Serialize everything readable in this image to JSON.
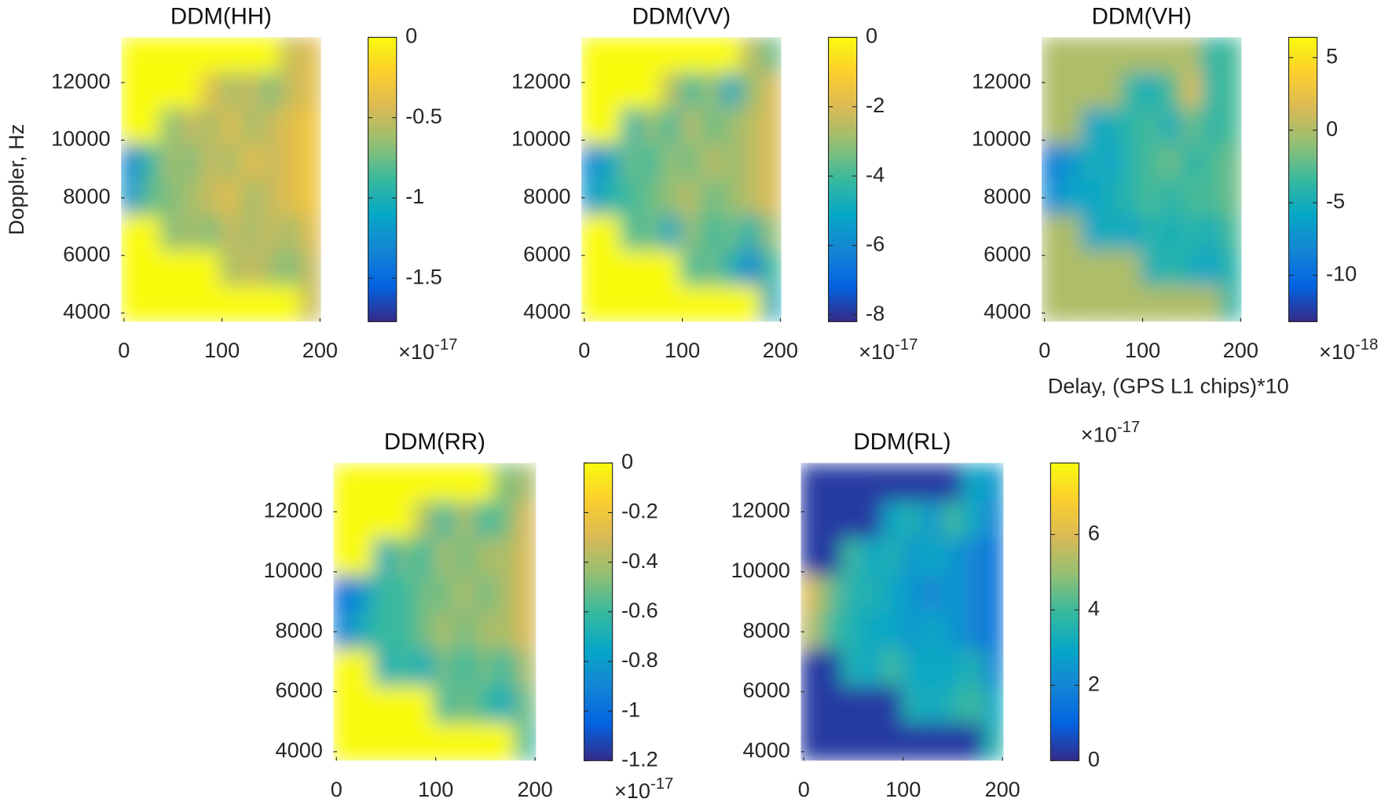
{
  "chart_data": [
    {
      "type": "heatmap",
      "title": "DDM(HH)",
      "ylabel": "Doppler, Hz",
      "colormap": "parula",
      "x": [
        7,
        27,
        48,
        68,
        89,
        109,
        129,
        150,
        170,
        191
      ],
      "y": [
        12953,
        11719,
        10485,
        9251,
        8018,
        6784,
        5550,
        4317
      ],
      "z": [
        [
          0,
          0,
          0,
          0,
          0,
          0,
          0,
          0,
          -0.5,
          -0.4
        ],
        [
          0,
          0,
          0,
          0,
          -0.4,
          -0.6,
          -0.5,
          -0.7,
          -0.5,
          -0.4
        ],
        [
          0,
          0,
          -0.7,
          -0.5,
          -0.6,
          -0.4,
          -0.6,
          -0.5,
          -0.4,
          -0.3
        ],
        [
          -1.3,
          -0.9,
          -0.6,
          -0.7,
          -0.5,
          -0.6,
          -0.4,
          -0.5,
          -0.4,
          -0.3
        ],
        [
          -1.2,
          -0.8,
          -0.7,
          -0.6,
          -0.5,
          -0.4,
          -0.6,
          -0.5,
          -0.4,
          -0.3
        ],
        [
          0,
          0,
          -0.7,
          -0.6,
          -0.7,
          -0.5,
          -0.6,
          -0.5,
          -0.6,
          -0.4
        ],
        [
          0,
          0,
          0,
          0,
          0,
          -0.6,
          -0.5,
          -0.6,
          -0.7,
          -0.5
        ],
        [
          0,
          0,
          0,
          0,
          0,
          0,
          0,
          0,
          0,
          -0.5
        ]
      ],
      "xlim": [
        -3,
        201
      ],
      "xticks": [
        0,
        100,
        200
      ],
      "ylim": [
        3700,
        13570
      ],
      "yticks": [
        4000,
        6000,
        8000,
        10000,
        12000
      ],
      "clim": [
        -1.77,
        0
      ],
      "cticks": [
        -1.5,
        -1,
        -0.5,
        0
      ],
      "colorbar_multiplier": {
        "base": "×10",
        "exponent": "-17"
      }
    },
    {
      "type": "heatmap",
      "title": "DDM(VV)",
      "colormap": "parula",
      "x": [
        7,
        27,
        48,
        68,
        89,
        109,
        129,
        150,
        170,
        191
      ],
      "y": [
        12953,
        11719,
        10485,
        9251,
        8018,
        6784,
        5550,
        4317
      ],
      "z": [
        [
          0,
          0,
          0,
          0,
          0,
          0,
          0,
          0,
          -2.5,
          -3.5
        ],
        [
          0,
          0,
          0,
          0,
          -2.5,
          -4,
          -3,
          -5,
          -3,
          -2
        ],
        [
          0,
          0,
          -4.5,
          -3,
          -4,
          -2.5,
          -3.5,
          -3,
          -2.5,
          -2
        ],
        [
          -6,
          -5,
          -3.5,
          -4,
          -3,
          -3.5,
          -2.5,
          -3,
          -2.5,
          -2
        ],
        [
          -5.5,
          -4.5,
          -4,
          -3.5,
          -3,
          -2.5,
          -3.5,
          -3,
          -2.5,
          -2
        ],
        [
          0,
          0,
          -4,
          -3.5,
          -5,
          -3,
          -4,
          -3.5,
          -4.5,
          -3
        ],
        [
          0,
          0,
          0,
          0,
          0,
          -4,
          -3.5,
          -4.5,
          -6,
          -4
        ],
        [
          0,
          0,
          0,
          0,
          0,
          0,
          0,
          0,
          0,
          -5
        ]
      ],
      "xlim": [
        -3,
        201
      ],
      "xticks": [
        0,
        100,
        200
      ],
      "ylim": [
        3700,
        13570
      ],
      "yticks": [
        4000,
        6000,
        8000,
        10000,
        12000
      ],
      "clim": [
        -8.2,
        0
      ],
      "cticks": [
        -8,
        -6,
        -4,
        -2,
        0
      ],
      "colorbar_multiplier": {
        "base": "×10",
        "exponent": "-17"
      }
    },
    {
      "type": "heatmap",
      "title": "DDM(VH)",
      "xlabel": "Delay, (GPS L1 chips)*10",
      "colormap": "parula",
      "x": [
        7,
        27,
        48,
        68,
        89,
        109,
        129,
        150,
        170,
        191
      ],
      "y": [
        12953,
        11719,
        10485,
        9251,
        8018,
        6784,
        5550,
        4317
      ],
      "z": [
        [
          0,
          0,
          0,
          0,
          0,
          0,
          0,
          0,
          -4,
          -3
        ],
        [
          0,
          0,
          0,
          0,
          -4,
          -5,
          -3,
          2,
          -4,
          -3
        ],
        [
          0,
          0,
          -6,
          -5,
          -4,
          -3,
          -5,
          -2,
          -4,
          -3
        ],
        [
          -9,
          -7,
          -5,
          -6,
          -4,
          -3,
          -2,
          -4,
          -3,
          -2
        ],
        [
          -8,
          -6,
          -6,
          -5,
          -4,
          -3,
          -4,
          -3,
          -3,
          -2
        ],
        [
          0,
          0,
          -6,
          -5,
          -6,
          -4,
          -5,
          -4,
          -5,
          -3
        ],
        [
          0,
          0,
          0,
          0,
          0,
          -5,
          -4,
          -5,
          -6,
          -4
        ],
        [
          0,
          0,
          0,
          0,
          0,
          0,
          0,
          0,
          0,
          -4
        ]
      ],
      "xlim": [
        -3,
        201
      ],
      "xticks": [
        0,
        100,
        200
      ],
      "ylim": [
        3700,
        13570
      ],
      "yticks": [
        4000,
        6000,
        8000,
        10000,
        12000
      ],
      "clim": [
        -13.2,
        6.4
      ],
      "cticks": [
        -10,
        -5,
        0,
        5
      ],
      "colorbar_multiplier": {
        "base": "×10",
        "exponent": "-18"
      }
    },
    {
      "type": "heatmap",
      "title": "DDM(RR)",
      "colormap": "parula",
      "x": [
        7,
        27,
        48,
        68,
        89,
        109,
        129,
        150,
        170,
        191
      ],
      "y": [
        12953,
        11719,
        10485,
        9251,
        8018,
        6784,
        5550,
        4317
      ],
      "z": [
        [
          0,
          0,
          0,
          0,
          0,
          0,
          0,
          0,
          -0.5,
          -0.4
        ],
        [
          0,
          0,
          0,
          0,
          -0.4,
          -0.6,
          -0.4,
          -0.6,
          -0.5,
          -0.3
        ],
        [
          0,
          0,
          -0.7,
          -0.5,
          -0.6,
          -0.4,
          -0.5,
          -0.4,
          -0.4,
          -0.3
        ],
        [
          -1.0,
          -0.8,
          -0.6,
          -0.6,
          -0.5,
          -0.5,
          -0.4,
          -0.5,
          -0.4,
          -0.3
        ],
        [
          -0.9,
          -0.7,
          -0.6,
          -0.6,
          -0.5,
          -0.4,
          -0.5,
          -0.4,
          -0.4,
          -0.3
        ],
        [
          0,
          0,
          -0.7,
          -0.6,
          -0.7,
          -0.5,
          -0.6,
          -0.5,
          -0.6,
          -0.4
        ],
        [
          0,
          0,
          0,
          0,
          0,
          -0.6,
          -0.5,
          -0.6,
          -0.7,
          -0.5
        ],
        [
          0,
          0,
          0,
          0,
          0,
          0,
          0,
          0,
          0,
          -0.6
        ]
      ],
      "xlim": [
        -3,
        201
      ],
      "xticks": [
        0,
        100,
        200
      ],
      "ylim": [
        3700,
        13630
      ],
      "yticks": [
        4000,
        6000,
        8000,
        10000,
        12000
      ],
      "clim": [
        -1.2,
        0
      ],
      "cticks": [
        -1.2,
        -1,
        -0.8,
        -0.6,
        -0.4,
        -0.2,
        0
      ],
      "colorbar_multiplier": {
        "base": "×10",
        "exponent": "-17"
      }
    },
    {
      "type": "heatmap",
      "title": "DDM(RL)",
      "colormap": "parula",
      "x": [
        7,
        27,
        48,
        68,
        89,
        109,
        129,
        150,
        170,
        191
      ],
      "y": [
        12953,
        11719,
        10485,
        9251,
        8018,
        6784,
        5550,
        4317
      ],
      "z": [
        [
          0.3,
          0.3,
          0.3,
          0.3,
          0.3,
          0.3,
          0.3,
          0.3,
          3,
          2.5
        ],
        [
          0.3,
          0.3,
          0.3,
          0.3,
          3,
          3.5,
          2.5,
          4,
          3,
          2
        ],
        [
          0.3,
          0.3,
          4,
          3,
          3.5,
          2.5,
          3,
          2.5,
          2,
          1.5
        ],
        [
          6,
          4.5,
          3.5,
          3.5,
          3,
          2.5,
          2,
          2.5,
          2,
          1.5
        ],
        [
          5.5,
          4,
          3.5,
          3,
          3,
          2.5,
          3,
          2.5,
          2,
          1.5
        ],
        [
          0.3,
          0.3,
          3.5,
          3,
          4,
          3,
          3,
          3,
          3.5,
          2
        ],
        [
          0.3,
          0.3,
          0.3,
          0.3,
          0.3,
          3.5,
          3,
          3.5,
          4,
          3
        ],
        [
          0.3,
          0.3,
          0.3,
          0.3,
          0.3,
          0.3,
          0.3,
          0.3,
          0.3,
          3.5
        ]
      ],
      "xlim": [
        -3,
        201
      ],
      "xticks": [
        0,
        100,
        200
      ],
      "ylim": [
        3700,
        13630
      ],
      "yticks": [
        4000,
        6000,
        8000,
        10000,
        12000
      ],
      "clim": [
        0,
        7.9
      ],
      "cticks": [
        0,
        2,
        4,
        6
      ],
      "colorbar_multiplier": {
        "base": "×10",
        "exponent": "-17"
      }
    }
  ]
}
